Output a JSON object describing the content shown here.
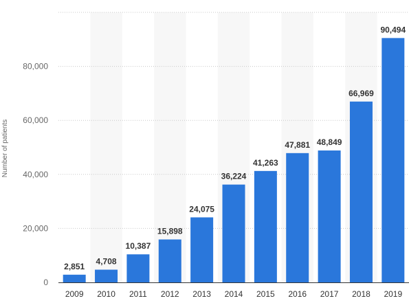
{
  "chart_data": {
    "type": "bar",
    "categories": [
      "2009",
      "2010",
      "2011",
      "2012",
      "2013",
      "2014",
      "2015",
      "2016",
      "2017",
      "2018",
      "2019"
    ],
    "values": [
      2851,
      4708,
      10387,
      15898,
      24075,
      36224,
      41263,
      47881,
      48849,
      66969,
      90494
    ],
    "value_labels": [
      "2,851",
      "4,708",
      "10,387",
      "15,898",
      "24,075",
      "36,224",
      "41,263",
      "47,881",
      "48,849",
      "66,969",
      "90,494"
    ],
    "ylabel": "Number of patients",
    "ylim": [
      0,
      100000
    ],
    "yticks": [
      0,
      20000,
      40000,
      60000,
      80000
    ],
    "ytick_labels": [
      "0",
      "20,000",
      "40,000",
      "60,000",
      "80,000"
    ],
    "grid": true,
    "bar_color": "#2a77db",
    "band_color": "#f7f7f7",
    "grid_color": "#c8c8c8"
  }
}
